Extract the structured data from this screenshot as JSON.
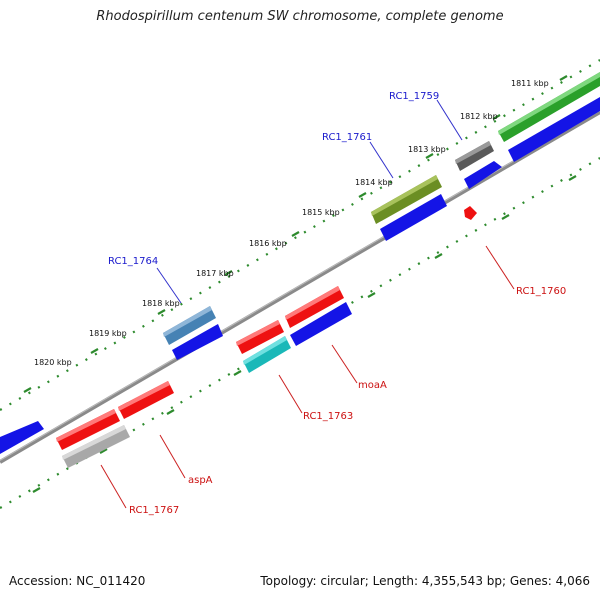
{
  "title": "Rhodospirillum centenum SW chromosome, complete genome",
  "footer": {
    "accession": "Accession: NC_011420",
    "topology": "Topology: circular; Length: 4,355,543 bp; Genes: 4,066"
  },
  "colors": {
    "backbone": "#888888",
    "tick": "#2e8b2e",
    "forward_label": "#1a1acc",
    "reverse_label": "#cc1111",
    "leader_forward": "#3333cc",
    "leader_reverse": "#cc2222"
  },
  "kbp_labels": [
    "1811 kbp",
    "1812 kbp",
    "1813 kbp",
    "1814 kbp",
    "1815 kbp",
    "1816 kbp",
    "1817 kbp",
    "1818 kbp",
    "1819 kbp",
    "1820 kbp"
  ],
  "gene_labels": {
    "rc1_1759": "RC1_1759",
    "rc1_1761": "RC1_1761",
    "rc1_1764": "RC1_1764",
    "rc1_1760": "RC1_1760",
    "moaA": "moaA",
    "rc1_1763": "RC1_1763",
    "aspA": "aspA",
    "rc1_1767": "RC1_1767"
  }
}
